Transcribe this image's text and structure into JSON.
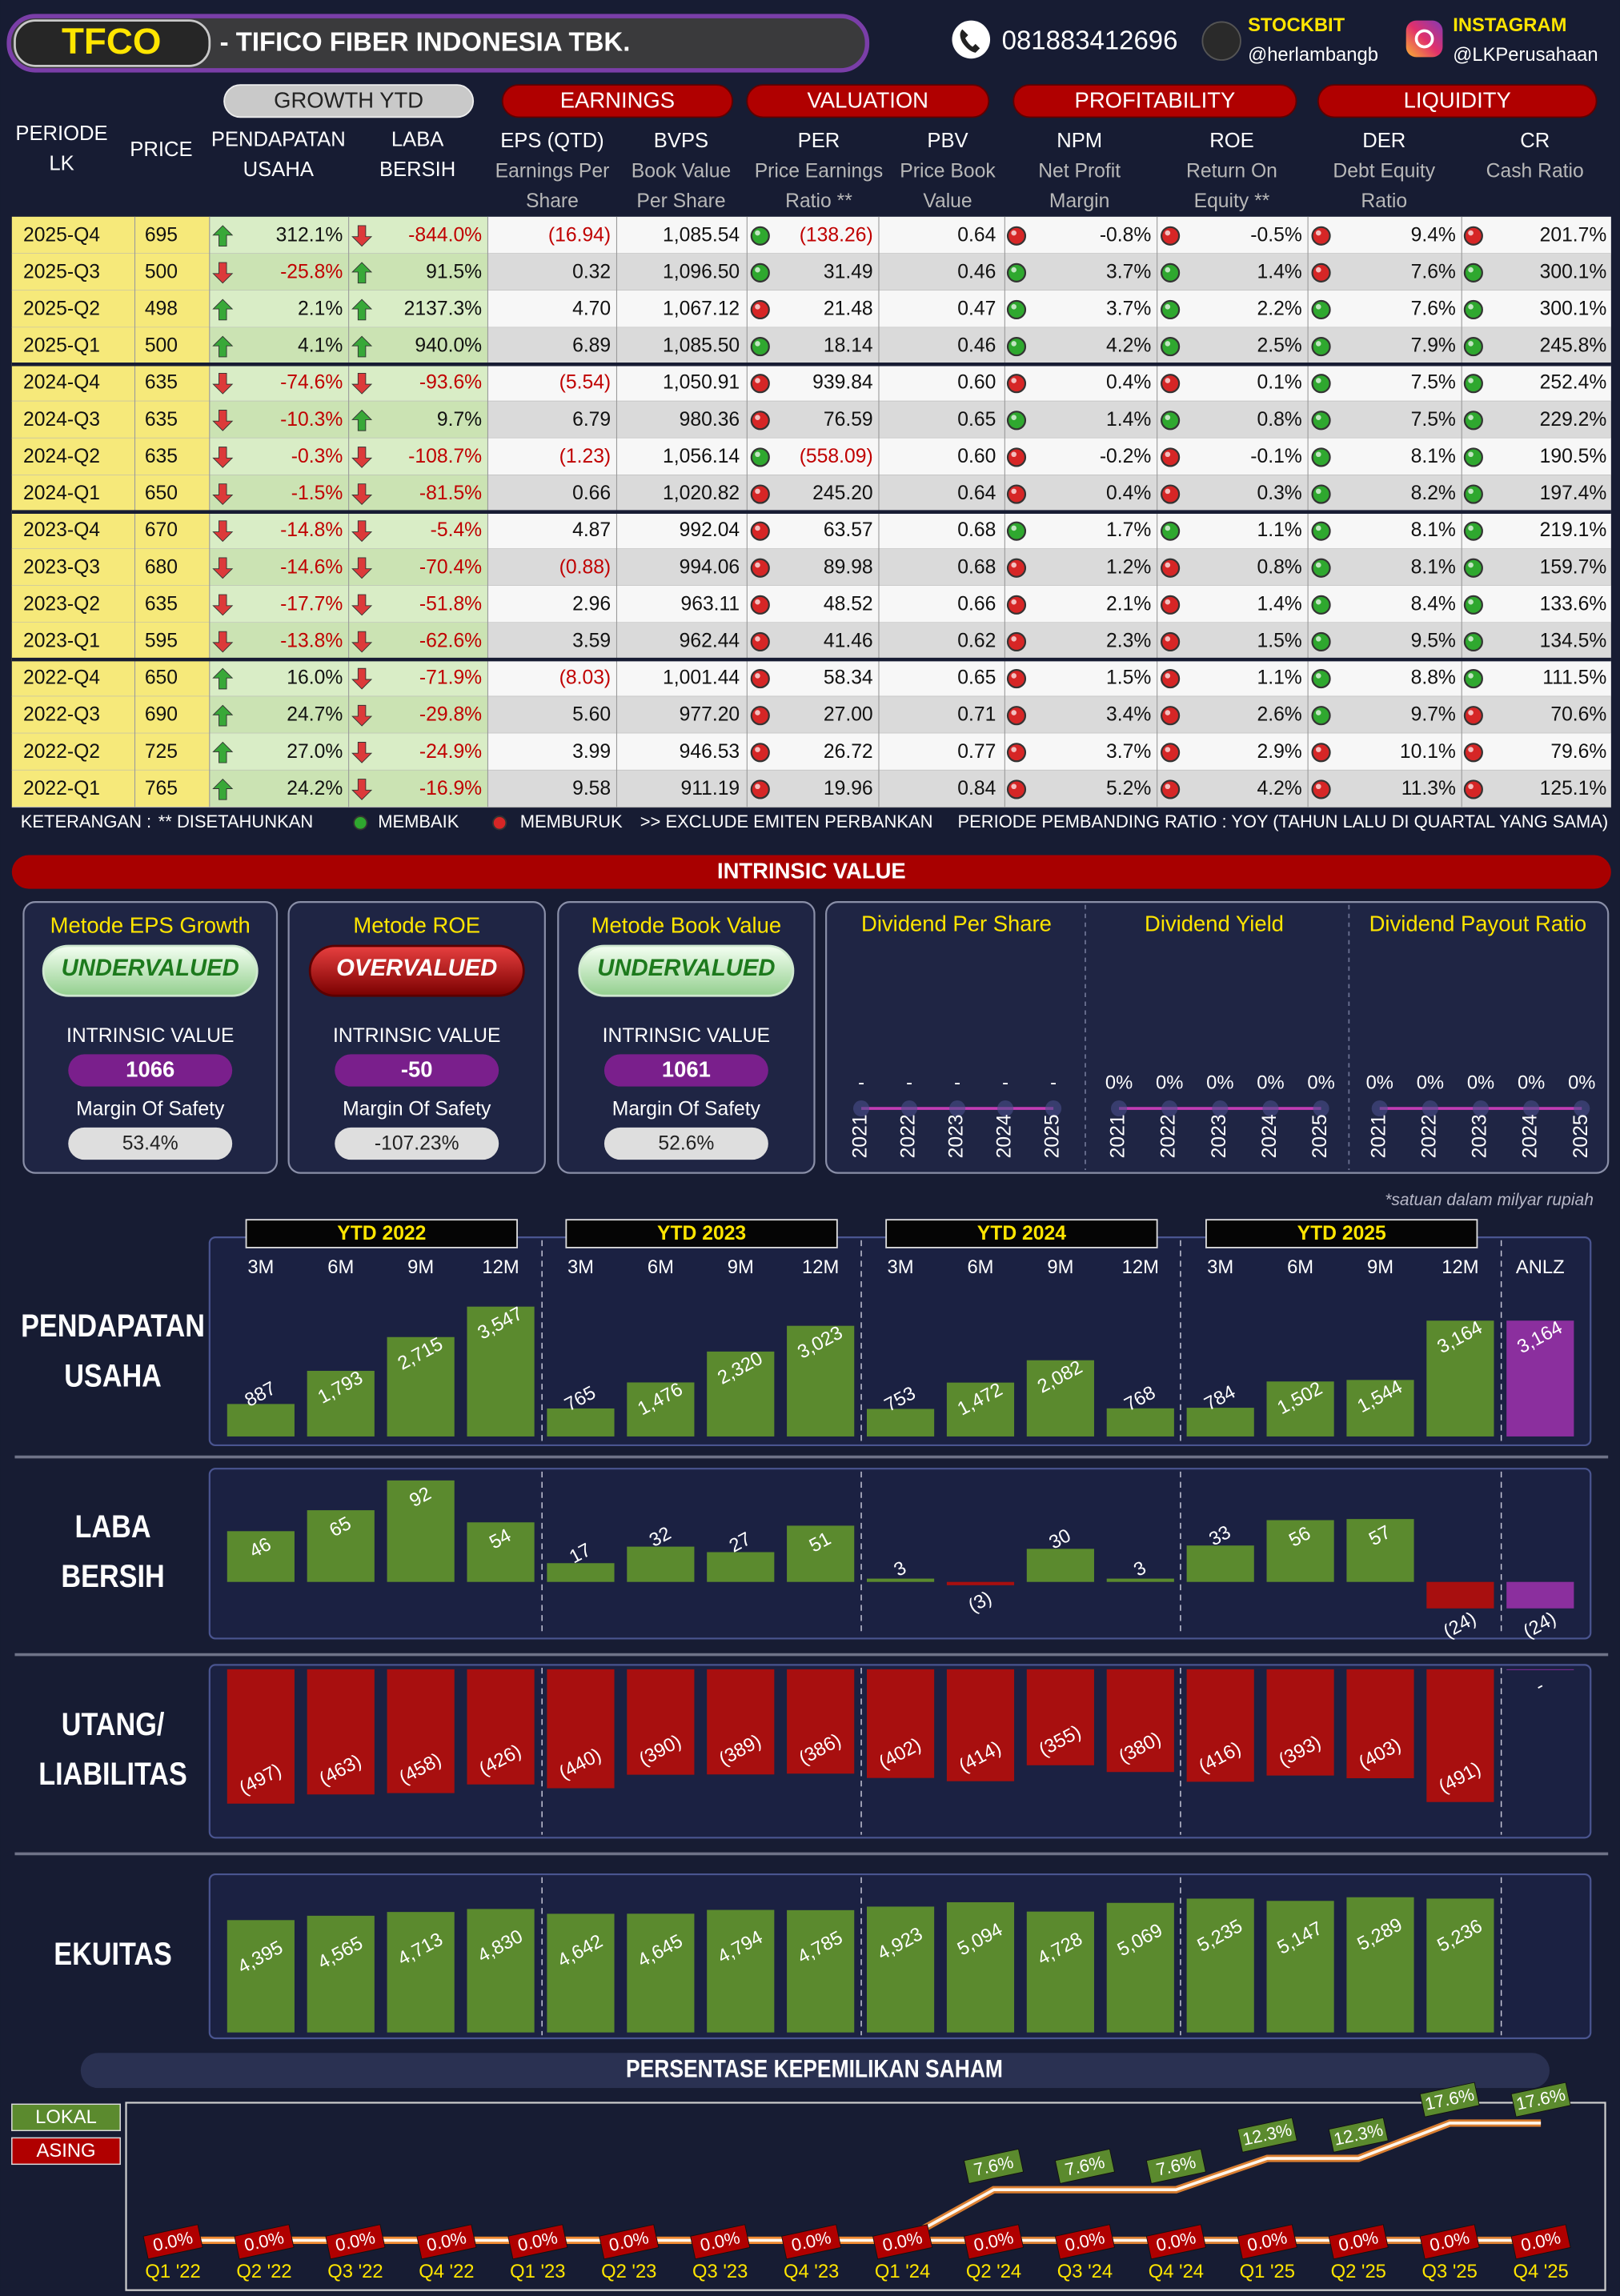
{
  "header": {
    "ticker": "TFCO",
    "company": "- TIFICO FIBER INDONESIA TBK.",
    "phone": "081883412696",
    "stockbit_label": "STOCKBIT",
    "stockbit_handle": "@herlambangb",
    "instagram_label": "INSTAGRAM",
    "instagram_handle": "@LKPerusahaan"
  },
  "table": {
    "groups": [
      "GROWTH YTD",
      "EARNINGS",
      "VALUATION",
      "PROFITABILITY",
      "LIQUIDITY"
    ],
    "columns": [
      [
        "PERIODE",
        "LK"
      ],
      [
        "PRICE"
      ],
      [
        "PENDAPATAN",
        "USAHA"
      ],
      [
        "LABA",
        "BERSIH"
      ],
      [
        "EPS (QTD)",
        "Earnings Per",
        "Share"
      ],
      [
        "BVPS",
        "Book Value",
        "Per Share"
      ],
      [
        "PER",
        "Price Earnings",
        "Ratio **"
      ],
      [
        "PBV",
        "Price Book",
        "Value"
      ],
      [
        "NPM",
        "Net Profit",
        "Margin"
      ],
      [
        "ROE",
        "Return On",
        "Equity **"
      ],
      [
        "DER",
        "Debt Equity",
        "Ratio"
      ],
      [
        "CR",
        "Cash Ratio"
      ]
    ],
    "trend_colors": {
      "up": "#38a838",
      "down": "#dc3a3a"
    },
    "signal_colors": {
      "good": "#2fa82f",
      "bad": "#d62626"
    },
    "rows": [
      {
        "period": "2025-Q4",
        "price": "695",
        "revenue_growth": "312.1%",
        "revenue_trend": "up",
        "profit_growth": "-844.0%",
        "profit_trend": "down",
        "eps": "(16.94)",
        "bvps": "1,085.54",
        "per": "(138.26)",
        "per_signal": "good",
        "pbv": "0.64",
        "npm": "-0.8%",
        "npm_signal": "bad",
        "roe": "-0.5%",
        "roe_signal": "bad",
        "der": "9.4%",
        "der_signal": "bad",
        "cr": "201.7%",
        "cr_signal": "bad"
      },
      {
        "period": "2025-Q3",
        "price": "500",
        "revenue_growth": "-25.8%",
        "revenue_trend": "down",
        "profit_growth": "91.5%",
        "profit_trend": "up",
        "eps": "0.32",
        "bvps": "1,096.50",
        "per": "31.49",
        "per_signal": "good",
        "pbv": "0.46",
        "npm": "3.7%",
        "npm_signal": "good",
        "roe": "1.4%",
        "roe_signal": "good",
        "der": "7.6%",
        "der_signal": "bad",
        "cr": "300.1%",
        "cr_signal": "good"
      },
      {
        "period": "2025-Q2",
        "price": "498",
        "revenue_growth": "2.1%",
        "revenue_trend": "up",
        "profit_growth": "2137.3%",
        "profit_trend": "up",
        "eps": "4.70",
        "bvps": "1,067.12",
        "per": "21.48",
        "per_signal": "bad",
        "pbv": "0.47",
        "npm": "3.7%",
        "npm_signal": "good",
        "roe": "2.2%",
        "roe_signal": "good",
        "der": "7.6%",
        "der_signal": "good",
        "cr": "300.1%",
        "cr_signal": "good"
      },
      {
        "period": "2025-Q1",
        "price": "500",
        "revenue_growth": "4.1%",
        "revenue_trend": "up",
        "profit_growth": "940.0%",
        "profit_trend": "up",
        "eps": "6.89",
        "bvps": "1,085.50",
        "per": "18.14",
        "per_signal": "good",
        "pbv": "0.46",
        "npm": "4.2%",
        "npm_signal": "good",
        "roe": "2.5%",
        "roe_signal": "good",
        "der": "7.9%",
        "der_signal": "good",
        "cr": "245.8%",
        "cr_signal": "good"
      },
      {
        "period": "2024-Q4",
        "price": "635",
        "revenue_growth": "-74.6%",
        "revenue_trend": "down",
        "profit_growth": "-93.6%",
        "profit_trend": "down",
        "eps": "(5.54)",
        "bvps": "1,050.91",
        "per": "939.84",
        "per_signal": "bad",
        "pbv": "0.60",
        "npm": "0.4%",
        "npm_signal": "bad",
        "roe": "0.1%",
        "roe_signal": "bad",
        "der": "7.5%",
        "der_signal": "good",
        "cr": "252.4%",
        "cr_signal": "good"
      },
      {
        "period": "2024-Q3",
        "price": "635",
        "revenue_growth": "-10.3%",
        "revenue_trend": "down",
        "profit_growth": "9.7%",
        "profit_trend": "up",
        "eps": "6.79",
        "bvps": "980.36",
        "per": "76.59",
        "per_signal": "bad",
        "pbv": "0.65",
        "npm": "1.4%",
        "npm_signal": "good",
        "roe": "0.8%",
        "roe_signal": "good",
        "der": "7.5%",
        "der_signal": "good",
        "cr": "229.2%",
        "cr_signal": "good"
      },
      {
        "period": "2024-Q2",
        "price": "635",
        "revenue_growth": "-0.3%",
        "revenue_trend": "down",
        "profit_growth": "-108.7%",
        "profit_trend": "down",
        "eps": "(1.23)",
        "bvps": "1,056.14",
        "per": "(558.09)",
        "per_signal": "good",
        "pbv": "0.60",
        "npm": "-0.2%",
        "npm_signal": "bad",
        "roe": "-0.1%",
        "roe_signal": "bad",
        "der": "8.1%",
        "der_signal": "good",
        "cr": "190.5%",
        "cr_signal": "good"
      },
      {
        "period": "2024-Q1",
        "price": "650",
        "revenue_growth": "-1.5%",
        "revenue_trend": "down",
        "profit_growth": "-81.5%",
        "profit_trend": "down",
        "eps": "0.66",
        "bvps": "1,020.82",
        "per": "245.20",
        "per_signal": "bad",
        "pbv": "0.64",
        "npm": "0.4%",
        "npm_signal": "bad",
        "roe": "0.3%",
        "roe_signal": "bad",
        "der": "8.2%",
        "der_signal": "good",
        "cr": "197.4%",
        "cr_signal": "good"
      },
      {
        "period": "2023-Q4",
        "price": "670",
        "revenue_growth": "-14.8%",
        "revenue_trend": "down",
        "profit_growth": "-5.4%",
        "profit_trend": "down",
        "eps": "4.87",
        "bvps": "992.04",
        "per": "63.57",
        "per_signal": "bad",
        "pbv": "0.68",
        "npm": "1.7%",
        "npm_signal": "good",
        "roe": "1.1%",
        "roe_signal": "good",
        "der": "8.1%",
        "der_signal": "good",
        "cr": "219.1%",
        "cr_signal": "good"
      },
      {
        "period": "2023-Q3",
        "price": "680",
        "revenue_growth": "-14.6%",
        "revenue_trend": "down",
        "profit_growth": "-70.4%",
        "profit_trend": "down",
        "eps": "(0.88)",
        "bvps": "994.06",
        "per": "89.98",
        "per_signal": "bad",
        "pbv": "0.68",
        "npm": "1.2%",
        "npm_signal": "bad",
        "roe": "0.8%",
        "roe_signal": "bad",
        "der": "8.1%",
        "der_signal": "good",
        "cr": "159.7%",
        "cr_signal": "good"
      },
      {
        "period": "2023-Q2",
        "price": "635",
        "revenue_growth": "-17.7%",
        "revenue_trend": "down",
        "profit_growth": "-51.8%",
        "profit_trend": "down",
        "eps": "2.96",
        "bvps": "963.11",
        "per": "48.52",
        "per_signal": "bad",
        "pbv": "0.66",
        "npm": "2.1%",
        "npm_signal": "bad",
        "roe": "1.4%",
        "roe_signal": "bad",
        "der": "8.4%",
        "der_signal": "good",
        "cr": "133.6%",
        "cr_signal": "good"
      },
      {
        "period": "2023-Q1",
        "price": "595",
        "revenue_growth": "-13.8%",
        "revenue_trend": "down",
        "profit_growth": "-62.6%",
        "profit_trend": "down",
        "eps": "3.59",
        "bvps": "962.44",
        "per": "41.46",
        "per_signal": "bad",
        "pbv": "0.62",
        "npm": "2.3%",
        "npm_signal": "bad",
        "roe": "1.5%",
        "roe_signal": "bad",
        "der": "9.5%",
        "der_signal": "good",
        "cr": "134.5%",
        "cr_signal": "good"
      },
      {
        "period": "2022-Q4",
        "price": "650",
        "revenue_growth": "16.0%",
        "revenue_trend": "up",
        "profit_growth": "-71.9%",
        "profit_trend": "down",
        "eps": "(8.03)",
        "bvps": "1,001.44",
        "per": "58.34",
        "per_signal": "bad",
        "pbv": "0.65",
        "npm": "1.5%",
        "npm_signal": "bad",
        "roe": "1.1%",
        "roe_signal": "bad",
        "der": "8.8%",
        "der_signal": "good",
        "cr": "111.5%",
        "cr_signal": "good"
      },
      {
        "period": "2022-Q3",
        "price": "690",
        "revenue_growth": "24.7%",
        "revenue_trend": "up",
        "profit_growth": "-29.8%",
        "profit_trend": "down",
        "eps": "5.60",
        "bvps": "977.20",
        "per": "27.00",
        "per_signal": "bad",
        "pbv": "0.71",
        "npm": "3.4%",
        "npm_signal": "bad",
        "roe": "2.6%",
        "roe_signal": "bad",
        "der": "9.7%",
        "der_signal": "good",
        "cr": "70.6%",
        "cr_signal": "bad"
      },
      {
        "period": "2022-Q2",
        "price": "725",
        "revenue_growth": "27.0%",
        "revenue_trend": "up",
        "profit_growth": "-24.9%",
        "profit_trend": "down",
        "eps": "3.99",
        "bvps": "946.53",
        "per": "26.72",
        "per_signal": "bad",
        "pbv": "0.77",
        "npm": "3.7%",
        "npm_signal": "bad",
        "roe": "2.9%",
        "roe_signal": "bad",
        "der": "10.1%",
        "der_signal": "bad",
        "cr": "79.6%",
        "cr_signal": "bad"
      },
      {
        "period": "2022-Q1",
        "price": "765",
        "revenue_growth": "24.2%",
        "revenue_trend": "up",
        "profit_growth": "-16.9%",
        "profit_trend": "down",
        "eps": "9.58",
        "bvps": "911.19",
        "per": "19.96",
        "per_signal": "bad",
        "pbv": "0.84",
        "npm": "5.2%",
        "npm_signal": "bad",
        "roe": "4.2%",
        "roe_signal": "bad",
        "der": "11.3%",
        "der_signal": "bad",
        "cr": "125.1%",
        "cr_signal": "bad"
      }
    ],
    "legend": {
      "title": "KETERANGAN :",
      "annualized": "** DISETAHUNKAN",
      "good": "MEMBAIK",
      "bad": "MEMBURUK",
      "exclude": ">> EXCLUDE EMITEN PERBANKAN",
      "comparison": "PERIODE PEMBANDING RATIO : YOY (TAHUN LALU DI QUARTAL YANG SAMA)"
    }
  },
  "intrinsic_value": {
    "title": "INTRINSIC VALUE",
    "methods": [
      {
        "title": "Metode EPS Growth",
        "verdict": "UNDERVALUED",
        "verdict_kind": "good",
        "value_label": "INTRINSIC VALUE",
        "value": "1066",
        "margin_label": "Margin Of Safety",
        "margin": "53.4%"
      },
      {
        "title": "Metode ROE",
        "verdict": "OVERVALUED",
        "verdict_kind": "bad",
        "value_label": "INTRINSIC VALUE",
        "value": "-50",
        "margin_label": "Margin Of Safety",
        "margin": "-107.23%"
      },
      {
        "title": "Metode Book Value",
        "verdict": "UNDERVALUED",
        "verdict_kind": "good",
        "value_label": "INTRINSIC VALUE",
        "value": "1061",
        "margin_label": "Margin Of Safety",
        "margin": "52.6%"
      }
    ]
  },
  "chart_data": [
    {
      "type": "line",
      "title": "Dividend Per Share",
      "categories": [
        "2021",
        "2022",
        "2023",
        "2024",
        "2025"
      ],
      "values": [
        0,
        0,
        0,
        0,
        0
      ],
      "value_labels": [
        "-",
        "-",
        "-",
        "-",
        "-"
      ],
      "color": "#c23cb4",
      "ylim": [
        0,
        1
      ]
    },
    {
      "type": "line",
      "title": "Dividend Yield",
      "categories": [
        "2021",
        "2022",
        "2023",
        "2024",
        "2025"
      ],
      "values": [
        0,
        0,
        0,
        0,
        0
      ],
      "value_labels": [
        "0%",
        "0%",
        "0%",
        "0%",
        "0%"
      ],
      "color": "#c23cb4",
      "ylim": [
        0,
        1
      ]
    },
    {
      "type": "line",
      "title": "Dividend Payout Ratio",
      "categories": [
        "2021",
        "2022",
        "2023",
        "2024",
        "2025"
      ],
      "values": [
        0,
        0,
        0,
        0,
        0
      ],
      "value_labels": [
        "0%",
        "0%",
        "0%",
        "0%",
        "0%"
      ],
      "color": "#c23cb4",
      "ylim": [
        0,
        1
      ]
    },
    {
      "type": "bar",
      "title": [
        "PENDAPATAN",
        "USAHA"
      ],
      "note": "*satuan dalam milyar rupiah",
      "groups": [
        "YTD 2022",
        "YTD 2023",
        "YTD 2024",
        "YTD 2025"
      ],
      "categories": [
        "3M",
        "6M",
        "9M",
        "12M",
        "3M",
        "6M",
        "9M",
        "12M",
        "3M",
        "6M",
        "9M",
        "12M",
        "3M",
        "6M",
        "9M",
        "12M",
        "ANLZ"
      ],
      "values": [
        887,
        1793,
        2715,
        3547,
        765,
        1476,
        2320,
        3023,
        753,
        1472,
        2082,
        768,
        784,
        1502,
        1544,
        3164,
        3164
      ],
      "value_labels": [
        "887",
        "1,793",
        "2,715",
        "3,547",
        "765",
        "1,476",
        "2,320",
        "3,023",
        "753",
        "1,472",
        "2,082",
        "768",
        "784",
        "1,502",
        "1,544",
        "3,164",
        "3,164"
      ],
      "colors": [
        "#5b8a2e",
        "#5b8a2e",
        "#5b8a2e",
        "#5b8a2e",
        "#5b8a2e",
        "#5b8a2e",
        "#5b8a2e",
        "#5b8a2e",
        "#5b8a2e",
        "#5b8a2e",
        "#5b8a2e",
        "#5b8a2e",
        "#5b8a2e",
        "#5b8a2e",
        "#5b8a2e",
        "#5b8a2e",
        "#8b2f9e"
      ],
      "ylim": [
        0,
        4000
      ]
    },
    {
      "type": "bar",
      "title": [
        "LABA",
        "BERSIH"
      ],
      "values": [
        46,
        65,
        92,
        54,
        17,
        32,
        27,
        51,
        3,
        -3,
        30,
        3,
        33,
        56,
        57,
        -24,
        -24
      ],
      "value_labels": [
        "46",
        "65",
        "92",
        "54",
        "17",
        "32",
        "27",
        "51",
        "3",
        "(3)",
        "30",
        "3",
        "33",
        "56",
        "57",
        "(24)",
        "(24)"
      ],
      "colors": [
        "#5b8a2e",
        "#5b8a2e",
        "#5b8a2e",
        "#5b8a2e",
        "#5b8a2e",
        "#5b8a2e",
        "#5b8a2e",
        "#5b8a2e",
        "#5b8a2e",
        "#a80f0f",
        "#5b8a2e",
        "#5b8a2e",
        "#5b8a2e",
        "#5b8a2e",
        "#5b8a2e",
        "#a80f0f",
        "#8b2f9e"
      ],
      "ylim": [
        -50,
        100
      ]
    },
    {
      "type": "bar",
      "title": [
        "UTANG/",
        "LIABILITAS"
      ],
      "values": [
        -497,
        -463,
        -458,
        -426,
        -440,
        -390,
        -389,
        -386,
        -402,
        -414,
        -355,
        -380,
        -416,
        -393,
        -403,
        -491,
        0
      ],
      "value_labels": [
        "(497)",
        "(463)",
        "(458)",
        "(426)",
        "(440)",
        "(390)",
        "(389)",
        "(386)",
        "(402)",
        "(414)",
        "(355)",
        "(380)",
        "(416)",
        "(393)",
        "(403)",
        "(491)",
        "-"
      ],
      "colors": [
        "#a80f0f",
        "#a80f0f",
        "#a80f0f",
        "#a80f0f",
        "#a80f0f",
        "#a80f0f",
        "#a80f0f",
        "#a80f0f",
        "#a80f0f",
        "#a80f0f",
        "#a80f0f",
        "#a80f0f",
        "#a80f0f",
        "#a80f0f",
        "#a80f0f",
        "#a80f0f",
        "#8b2f9e"
      ],
      "ylim": [
        -520,
        0
      ]
    },
    {
      "type": "bar",
      "title": [
        "EKUITAS"
      ],
      "values": [
        4395,
        4565,
        4713,
        4830,
        4642,
        4645,
        4794,
        4785,
        4923,
        5094,
        4728,
        5069,
        5235,
        5147,
        5289,
        5236,
        null
      ],
      "value_labels": [
        "4,395",
        "4,565",
        "4,713",
        "4,830",
        "4,642",
        "4,645",
        "4,794",
        "4,785",
        "4,923",
        "5,094",
        "4,728",
        "5,069",
        "5,235",
        "5,147",
        "5,289",
        "5,236",
        null
      ],
      "colors": [
        "#5b8a2e",
        "#5b8a2e",
        "#5b8a2e",
        "#5b8a2e",
        "#5b8a2e",
        "#5b8a2e",
        "#5b8a2e",
        "#5b8a2e",
        "#5b8a2e",
        "#5b8a2e",
        "#5b8a2e",
        "#5b8a2e",
        "#5b8a2e",
        "#5b8a2e",
        "#5b8a2e",
        "#5b8a2e",
        null
      ],
      "ylim": [
        0,
        5500
      ]
    },
    {
      "type": "ownership",
      "title": "PERSENTASE KEPEMILIKAN SAHAM",
      "legend": "left",
      "categories": [
        "Q1 '22",
        "Q2 '22",
        "Q3 '22",
        "Q4 '22",
        "Q1 '23",
        "Q2 '23",
        "Q3 '23",
        "Q4 '23",
        "Q1 '24",
        "Q2 '24",
        "Q3 '24",
        "Q4 '24",
        "Q1 '25",
        "Q2 '25",
        "Q3 '25",
        "Q4 '25"
      ],
      "series": [
        {
          "name": "LOKAL",
          "color": "#5b8a2e",
          "values": [
            0,
            0,
            0,
            0,
            0,
            0,
            0,
            0,
            0,
            7.6,
            7.6,
            7.6,
            12.3,
            12.3,
            17.6,
            17.6
          ],
          "value_labels": [
            null,
            null,
            null,
            null,
            null,
            null,
            null,
            null,
            null,
            "7.6%",
            "7.6%",
            "7.6%",
            "12.3%",
            "12.3%",
            "17.6%",
            "17.6%"
          ]
        },
        {
          "name": "ASING",
          "color": "#b00000",
          "values": [
            0,
            0,
            0,
            0,
            0,
            0,
            0,
            0,
            0,
            0,
            0,
            0,
            0,
            0,
            0,
            0
          ],
          "value_labels": [
            "0.0%",
            "0.0%",
            "0.0%",
            "0.0%",
            "0.0%",
            "0.0%",
            "0.0%",
            "0.0%",
            "0.0%",
            "0.0%",
            "0.0%",
            "0.0%",
            "0.0%",
            "0.0%",
            "0.0%",
            "0.0%"
          ]
        }
      ],
      "ylim": [
        0,
        20
      ]
    }
  ]
}
